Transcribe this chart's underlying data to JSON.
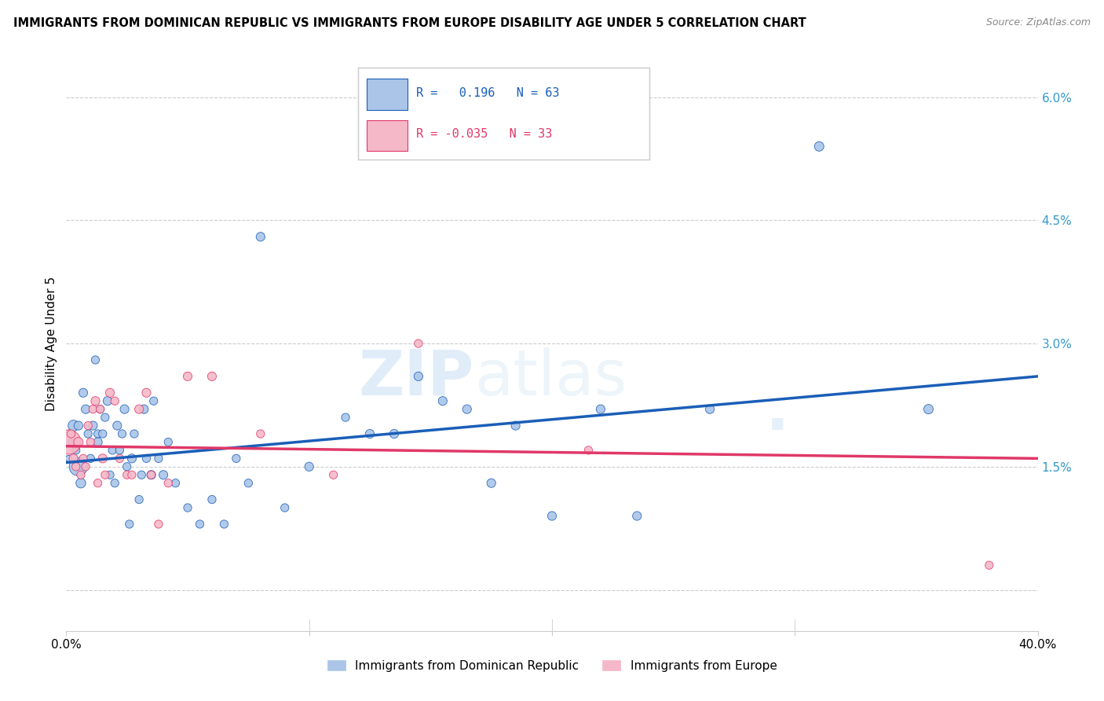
{
  "title": "IMMIGRANTS FROM DOMINICAN REPUBLIC VS IMMIGRANTS FROM EUROPE DISABILITY AGE UNDER 5 CORRELATION CHART",
  "source": "Source: ZipAtlas.com",
  "ylabel": "Disability Age Under 5",
  "legend_blue_label": "Immigrants from Dominican Republic",
  "legend_pink_label": "Immigrants from Europe",
  "r_blue": 0.196,
  "n_blue": 63,
  "r_pink": -0.035,
  "n_pink": 33,
  "xmin": 0.0,
  "xmax": 0.4,
  "ymin": -0.005,
  "ymax": 0.065,
  "yticks": [
    0.0,
    0.015,
    0.03,
    0.045,
    0.06
  ],
  "ytick_labels": [
    "",
    "1.5%",
    "3.0%",
    "4.5%",
    "6.0%"
  ],
  "xticks": [
    0.0,
    0.1,
    0.2,
    0.3,
    0.4
  ],
  "xtick_labels": [
    "0.0%",
    "",
    "",
    "",
    "40.0%"
  ],
  "watermark_zip": "ZIP",
  "watermark_atlas": "atlas",
  "blue_color": "#aac5e8",
  "pink_color": "#f5b8c8",
  "blue_line_color": "#1a5eb8",
  "pink_line_color": "#e03868",
  "grid_color": "#cccccc",
  "blue_line_y0": 0.0155,
  "blue_line_y1": 0.026,
  "pink_line_y0": 0.0175,
  "pink_line_y1": 0.016,
  "blue_points": [
    [
      0.001,
      0.016
    ],
    [
      0.002,
      0.018
    ],
    [
      0.003,
      0.02
    ],
    [
      0.004,
      0.017
    ],
    [
      0.005,
      0.015
    ],
    [
      0.005,
      0.02
    ],
    [
      0.006,
      0.013
    ],
    [
      0.007,
      0.024
    ],
    [
      0.008,
      0.022
    ],
    [
      0.009,
      0.019
    ],
    [
      0.01,
      0.016
    ],
    [
      0.011,
      0.02
    ],
    [
      0.012,
      0.028
    ],
    [
      0.013,
      0.019
    ],
    [
      0.013,
      0.018
    ],
    [
      0.014,
      0.022
    ],
    [
      0.015,
      0.019
    ],
    [
      0.016,
      0.021
    ],
    [
      0.017,
      0.023
    ],
    [
      0.018,
      0.014
    ],
    [
      0.019,
      0.017
    ],
    [
      0.02,
      0.013
    ],
    [
      0.021,
      0.02
    ],
    [
      0.022,
      0.017
    ],
    [
      0.023,
      0.019
    ],
    [
      0.024,
      0.022
    ],
    [
      0.025,
      0.015
    ],
    [
      0.026,
      0.008
    ],
    [
      0.027,
      0.016
    ],
    [
      0.028,
      0.019
    ],
    [
      0.03,
      0.011
    ],
    [
      0.031,
      0.014
    ],
    [
      0.032,
      0.022
    ],
    [
      0.033,
      0.016
    ],
    [
      0.035,
      0.014
    ],
    [
      0.036,
      0.023
    ],
    [
      0.038,
      0.016
    ],
    [
      0.04,
      0.014
    ],
    [
      0.042,
      0.018
    ],
    [
      0.045,
      0.013
    ],
    [
      0.05,
      0.01
    ],
    [
      0.055,
      0.008
    ],
    [
      0.06,
      0.011
    ],
    [
      0.065,
      0.008
    ],
    [
      0.07,
      0.016
    ],
    [
      0.075,
      0.013
    ],
    [
      0.08,
      0.043
    ],
    [
      0.09,
      0.01
    ],
    [
      0.1,
      0.015
    ],
    [
      0.115,
      0.021
    ],
    [
      0.125,
      0.019
    ],
    [
      0.135,
      0.019
    ],
    [
      0.145,
      0.026
    ],
    [
      0.155,
      0.023
    ],
    [
      0.165,
      0.022
    ],
    [
      0.175,
      0.013
    ],
    [
      0.185,
      0.02
    ],
    [
      0.2,
      0.009
    ],
    [
      0.22,
      0.022
    ],
    [
      0.235,
      0.009
    ],
    [
      0.265,
      0.022
    ],
    [
      0.31,
      0.054
    ],
    [
      0.355,
      0.022
    ]
  ],
  "blue_sizes": [
    35,
    35,
    100,
    55,
    280,
    65,
    80,
    65,
    65,
    55,
    55,
    65,
    55,
    55,
    65,
    55,
    55,
    55,
    65,
    55,
    55,
    55,
    65,
    55,
    55,
    65,
    55,
    55,
    65,
    55,
    55,
    55,
    65,
    55,
    65,
    55,
    55,
    65,
    55,
    55,
    55,
    55,
    55,
    55,
    55,
    55,
    65,
    55,
    65,
    55,
    65,
    65,
    65,
    65,
    65,
    65,
    65,
    65,
    65,
    65,
    65,
    75,
    75
  ],
  "pink_points": [
    [
      0.001,
      0.018
    ],
    [
      0.002,
      0.019
    ],
    [
      0.003,
      0.016
    ],
    [
      0.004,
      0.015
    ],
    [
      0.005,
      0.018
    ],
    [
      0.006,
      0.014
    ],
    [
      0.007,
      0.016
    ],
    [
      0.008,
      0.015
    ],
    [
      0.009,
      0.02
    ],
    [
      0.01,
      0.018
    ],
    [
      0.011,
      0.022
    ],
    [
      0.012,
      0.023
    ],
    [
      0.013,
      0.013
    ],
    [
      0.014,
      0.022
    ],
    [
      0.015,
      0.016
    ],
    [
      0.016,
      0.014
    ],
    [
      0.018,
      0.024
    ],
    [
      0.02,
      0.023
    ],
    [
      0.022,
      0.016
    ],
    [
      0.025,
      0.014
    ],
    [
      0.027,
      0.014
    ],
    [
      0.03,
      0.022
    ],
    [
      0.033,
      0.024
    ],
    [
      0.035,
      0.014
    ],
    [
      0.038,
      0.008
    ],
    [
      0.042,
      0.013
    ],
    [
      0.05,
      0.026
    ],
    [
      0.06,
      0.026
    ],
    [
      0.08,
      0.019
    ],
    [
      0.11,
      0.014
    ],
    [
      0.145,
      0.03
    ],
    [
      0.215,
      0.017
    ],
    [
      0.38,
      0.003
    ]
  ],
  "pink_sizes": [
    500,
    55,
    65,
    55,
    75,
    55,
    55,
    55,
    55,
    55,
    55,
    65,
    55,
    55,
    65,
    55,
    65,
    55,
    55,
    55,
    55,
    65,
    65,
    55,
    55,
    55,
    65,
    65,
    55,
    55,
    55,
    55,
    55
  ]
}
